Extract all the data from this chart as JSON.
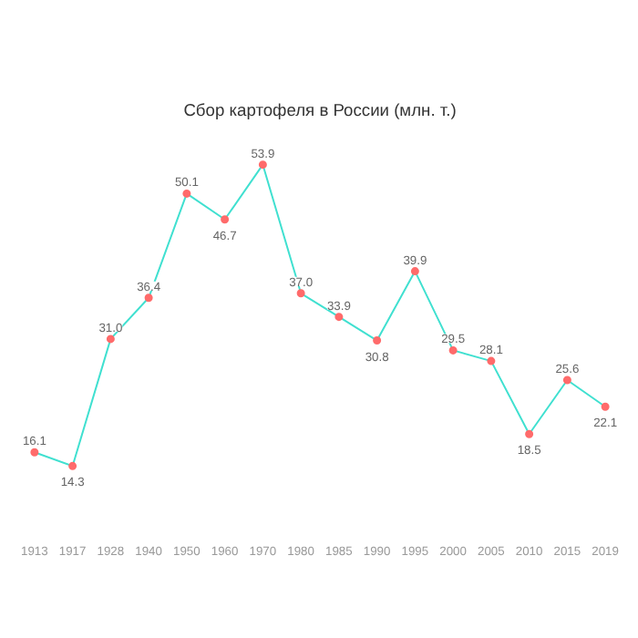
{
  "chart_data": {
    "type": "line",
    "title": "Сбор картофеля в России (млн. т.)",
    "categories": [
      "1913",
      "1917",
      "1928",
      "1940",
      "1950",
      "1960",
      "1970",
      "1980",
      "1985",
      "1990",
      "1995",
      "2000",
      "2005",
      "2010",
      "2015",
      "2019"
    ],
    "series": [
      {
        "color": "#40e0d0",
        "colors": [
          "#ff6b6b",
          "#ff6b6b",
          "#ff6b6b",
          "#ff6b6b",
          "#ff6b6b",
          "#ff6b6b",
          "#ff6b6b",
          "#ff6b6b",
          "#ff6b6b",
          "#ff6b6b",
          "#ff6b6b",
          "#ff6b6b",
          "#ff6b6b",
          "#ff6b6b",
          "#ff6b6b",
          "#ff6b6b"
        ],
        "values": [
          16.1,
          14.3,
          31.0,
          36.4,
          50.1,
          46.7,
          53.9,
          37.0,
          33.9,
          30.8,
          39.9,
          29.5,
          28.1,
          18.5,
          25.6,
          22.1
        ],
        "value_labels": [
          "16.1",
          "14.3",
          "31.0",
          "36.4",
          "50.1",
          "46.7",
          "53.9",
          "37.0",
          "33.9",
          "30.8",
          "39.9",
          "29.5",
          "28.1",
          "18.5",
          "25.6",
          "22.1"
        ]
      }
    ],
    "marker": "circle",
    "grid": false
  }
}
